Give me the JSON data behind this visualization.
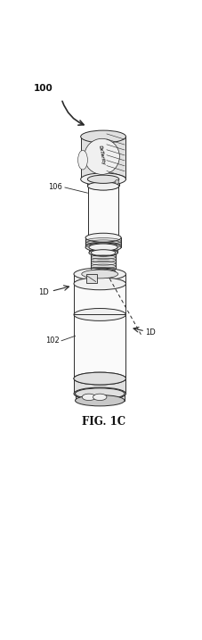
{
  "fig_label": "FIG. 1C",
  "label_100": "100",
  "label_106": "106",
  "label_1D_top": "1D",
  "label_1D_bottom": "1D",
  "label_102": "102",
  "bg_color": "#ffffff",
  "line_color": "#2a2a2a",
  "fill_light": "#f0f0f0",
  "fill_mid": "#e0e0e0",
  "fill_dark": "#c8c8c8",
  "fill_white": "#fafafa"
}
